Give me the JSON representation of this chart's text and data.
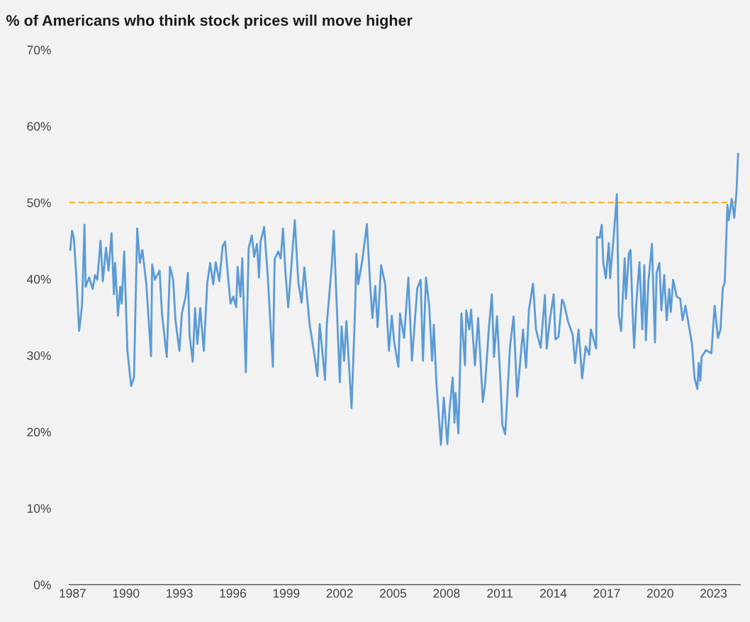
{
  "chart_data": {
    "type": "line",
    "title": "% of Americans who think stock prices will move higher",
    "x": [
      1986.87,
      1986.97,
      1987.07,
      1987.2,
      1987.37,
      1987.53,
      1987.67,
      1987.73,
      1987.93,
      1988.13,
      1988.26,
      1988.39,
      1988.57,
      1988.7,
      1988.88,
      1989.02,
      1989.19,
      1989.32,
      1989.39,
      1989.55,
      1989.68,
      1989.76,
      1989.9,
      1990.08,
      1990.29,
      1990.45,
      1990.63,
      1990.78,
      1990.92,
      1991.14,
      1991.41,
      1991.47,
      1991.62,
      1991.89,
      1992.02,
      1992.29,
      1992.47,
      1992.65,
      1992.78,
      1993.0,
      1993.14,
      1993.35,
      1993.48,
      1993.57,
      1993.75,
      1993.88,
      1994.01,
      1994.17,
      1994.37,
      1994.57,
      1994.73,
      1994.9,
      1995.04,
      1995.24,
      1995.43,
      1995.57,
      1995.63,
      1995.87,
      1996.03,
      1996.19,
      1996.27,
      1996.43,
      1996.53,
      1996.73,
      1996.89,
      1997.07,
      1997.2,
      1997.36,
      1997.47,
      1997.56,
      1997.76,
      1997.96,
      1998.25,
      1998.35,
      1998.55,
      1998.69,
      1998.82,
      1998.95,
      1999.11,
      1999.24,
      1999.48,
      1999.68,
      1999.86,
      2000.02,
      2000.31,
      2000.55,
      2000.75,
      2000.88,
      2001.18,
      2001.28,
      2001.54,
      2001.67,
      2002.01,
      2002.11,
      2002.25,
      2002.38,
      2002.67,
      2002.87,
      2002.94,
      2003.04,
      2003.27,
      2003.53,
      2003.71,
      2003.84,
      2004.0,
      2004.13,
      2004.33,
      2004.56,
      2004.77,
      2004.93,
      2005.06,
      2005.3,
      2005.39,
      2005.62,
      2005.75,
      2005.86,
      2006.06,
      2006.36,
      2006.55,
      2006.68,
      2006.85,
      2007.03,
      2007.19,
      2007.29,
      2007.43,
      2007.69,
      2007.85,
      2008.05,
      2008.18,
      2008.35,
      2008.45,
      2008.51,
      2008.67,
      2008.84,
      2009.04,
      2009.11,
      2009.28,
      2009.38,
      2009.6,
      2009.78,
      2010.04,
      2010.17,
      2010.37,
      2010.55,
      2010.67,
      2010.84,
      2011.04,
      2011.14,
      2011.3,
      2011.57,
      2011.77,
      2011.97,
      2012.3,
      2012.47,
      2012.63,
      2012.86,
      2013.03,
      2013.29,
      2013.53,
      2013.63,
      2013.82,
      2014.02,
      2014.12,
      2014.29,
      2014.49,
      2014.6,
      2014.82,
      2015.09,
      2015.22,
      2015.42,
      2015.62,
      2015.82,
      2016.02,
      2016.11,
      2016.41,
      2016.45,
      2016.61,
      2016.72,
      2016.81,
      2016.95,
      2017.12,
      2017.19,
      2017.39,
      2017.57,
      2017.68,
      2017.81,
      2018.01,
      2018.08,
      2018.24,
      2018.34,
      2018.45,
      2018.54,
      2018.67,
      2018.84,
      2019.0,
      2019.11,
      2019.2,
      2019.34,
      2019.54,
      2019.71,
      2019.8,
      2019.96,
      2020.07,
      2020.23,
      2020.37,
      2020.51,
      2020.6,
      2020.73,
      2020.93,
      2021.13,
      2021.26,
      2021.42,
      2021.79,
      2021.93,
      2022.09,
      2022.17,
      2022.26,
      2022.33,
      2022.57,
      2022.88,
      2023.06,
      2023.25,
      2023.39,
      2023.52,
      2023.63,
      2023.78,
      2023.85,
      2024.02,
      2024.16,
      2024.29,
      2024.38
    ],
    "series": [
      {
        "color": "#5b9bd5",
        "values": [
          43.8,
          46.3,
          45.4,
          40.8,
          33.2,
          36.5,
          47.1,
          39.0,
          40.2,
          38.7,
          40.5,
          39.9,
          45.0,
          39.7,
          44.1,
          41.1,
          46.0,
          38.0,
          42.1,
          35.2,
          39.0,
          36.8,
          43.6,
          30.6,
          26.0,
          27.1,
          46.6,
          42.1,
          43.8,
          39.4,
          29.9,
          41.9,
          39.9,
          41.1,
          35.5,
          29.8,
          41.6,
          39.9,
          34.6,
          30.6,
          35.5,
          37.7,
          40.8,
          32.7,
          29.2,
          36.2,
          31.5,
          36.2,
          30.6,
          39.6,
          42.1,
          39.3,
          42.2,
          39.7,
          44.3,
          44.9,
          43.0,
          36.8,
          37.7,
          36.3,
          41.6,
          37.7,
          42.7,
          27.8,
          44.0,
          45.7,
          42.9,
          44.6,
          40.2,
          44.9,
          46.8,
          40.5,
          28.5,
          42.6,
          43.6,
          42.7,
          46.6,
          41.1,
          36.3,
          40.2,
          47.7,
          39.6,
          36.9,
          41.5,
          34.1,
          30.6,
          27.3,
          34.1,
          26.8,
          34.1,
          41.3,
          46.3,
          26.5,
          33.8,
          29.3,
          34.5,
          23.1,
          36.2,
          43.3,
          39.3,
          42.4,
          47.2,
          39.4,
          34.9,
          39.1,
          33.7,
          41.8,
          39.3,
          30.6,
          35.2,
          31.8,
          28.5,
          35.5,
          32.3,
          36.6,
          40.2,
          29.3,
          38.8,
          39.9,
          29.3,
          40.2,
          36.5,
          29.3,
          34.0,
          26.5,
          18.3,
          24.5,
          18.4,
          23.1,
          27.1,
          21.2,
          25.1,
          19.8,
          35.5,
          28.7,
          35.9,
          33.4,
          36.0,
          28.7,
          34.9,
          23.9,
          26.2,
          33.2,
          38.0,
          29.8,
          35.1,
          26.2,
          20.9,
          19.7,
          31.2,
          35.1,
          24.6,
          33.4,
          28.4,
          35.9,
          39.4,
          33.4,
          31.0,
          37.9,
          30.9,
          34.9,
          38.0,
          32.1,
          32.4,
          37.3,
          36.8,
          34.5,
          32.7,
          29.0,
          33.4,
          27.0,
          31.2,
          30.1,
          33.4,
          30.9,
          45.5,
          45.4,
          47.1,
          42.1,
          40.1,
          44.7,
          40.1,
          45.5,
          51.1,
          35.2,
          33.2,
          42.7,
          37.4,
          43.3,
          43.8,
          35.9,
          31.0,
          37.1,
          42.2,
          33.4,
          41.8,
          32.0,
          39.6,
          44.6,
          31.7,
          40.8,
          42.1,
          35.9,
          40.5,
          34.6,
          38.7,
          35.7,
          39.9,
          37.7,
          37.4,
          34.6,
          36.5,
          31.5,
          27.1,
          25.6,
          29.0,
          26.7,
          29.8,
          30.7,
          30.3,
          36.5,
          32.3,
          33.4,
          38.8,
          39.6,
          49.7,
          47.7,
          50.5,
          48.0,
          51.4,
          56.4
        ]
      }
    ],
    "xlim": [
      1986.8,
      2024.5
    ],
    "xticks": [
      1987,
      1990,
      1993,
      1996,
      1999,
      2002,
      2005,
      2008,
      2011,
      2014,
      2017,
      2020,
      2023
    ],
    "ylim": [
      0,
      70
    ],
    "yticks": [
      {
        "value": 0,
        "label": "0%"
      },
      {
        "value": 10,
        "label": "10%"
      },
      {
        "value": 20,
        "label": "20%"
      },
      {
        "value": 30,
        "label": "30%"
      },
      {
        "value": 40,
        "label": "40%"
      },
      {
        "value": 50,
        "label": "50%"
      },
      {
        "value": 60,
        "label": "60%"
      },
      {
        "value": 70,
        "label": "70%"
      }
    ],
    "ref_lines": [
      {
        "axis": "y",
        "value": 50,
        "color": "#f5b52e",
        "line_style": "dashed"
      }
    ],
    "grid": false,
    "legend": false
  }
}
